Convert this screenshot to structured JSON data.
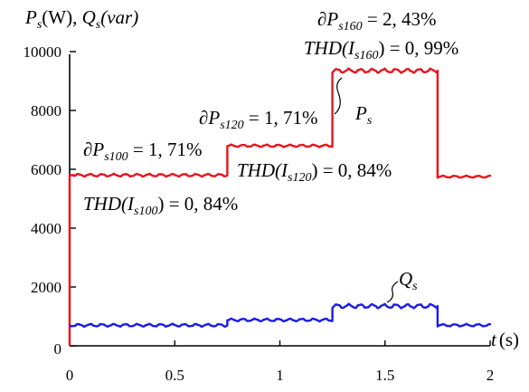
{
  "chart_data": {
    "type": "line",
    "ylabel": {
      "p": "P",
      "p_sub": "s",
      "p_unit": "(W), ",
      "q": "Q",
      "q_sub": "s",
      "q_unit": "(var)"
    },
    "xlabel": {
      "t": "t",
      "unit": "(s)"
    },
    "xlim": [
      0,
      2
    ],
    "ylim": [
      0,
      10000
    ],
    "x_ticks": [
      "0",
      "0.5",
      "1",
      "1.5",
      "2"
    ],
    "y_ticks": [
      "0",
      "2000",
      "4000",
      "6000",
      "8000",
      "10000"
    ],
    "series": [
      {
        "name_main": "P",
        "name_sub": "s",
        "color": "#e8141b",
        "segments": [
          {
            "x0": 0.0,
            "x1": 0.02,
            "value": 5800
          },
          {
            "x0": 0.02,
            "x1": 0.75,
            "value": 5800,
            "ripple": 80
          },
          {
            "x0": 0.75,
            "x1": 1.25,
            "value": 6800,
            "ripple": 70
          },
          {
            "x0": 1.25,
            "x1": 1.75,
            "value": 9350,
            "ripple": 120
          },
          {
            "x0": 1.75,
            "x1": 2.0,
            "value": 5750,
            "ripple": 60
          }
        ]
      },
      {
        "name_main": "Q",
        "name_sub": "s",
        "color": "#1a1ae6",
        "segments": [
          {
            "x0": 0.0,
            "x1": 0.75,
            "value": 700,
            "ripple": 80
          },
          {
            "x0": 0.75,
            "x1": 1.25,
            "value": 880,
            "ripple": 80
          },
          {
            "x0": 1.25,
            "x1": 1.75,
            "value": 1350,
            "ripple": 120
          },
          {
            "x0": 1.75,
            "x1": 2.0,
            "value": 700,
            "ripple": 70
          }
        ]
      }
    ],
    "annotations": [
      {
        "pre": "∂P",
        "sub": "s100",
        "post": " = 1, 71%"
      },
      {
        "pre": "THD(I",
        "sub": "s100",
        "post": ") = 0, 84%"
      },
      {
        "pre": "∂P",
        "sub": "s120",
        "post": " = 1, 71%"
      },
      {
        "pre": "THD(I",
        "sub": "s120",
        "post": ") = 0, 84%"
      },
      {
        "pre": "∂P",
        "sub": "s160",
        "post": " = 2, 43%"
      },
      {
        "pre": "THD(I",
        "sub": "s160",
        "post": ") = 0, 99%"
      }
    ]
  }
}
